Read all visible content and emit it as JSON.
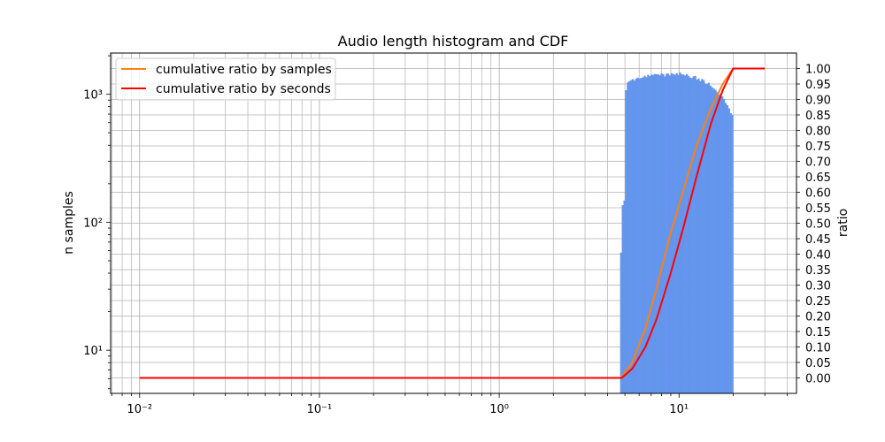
{
  "chart_data": {
    "type": "bar",
    "title": "Audio length histogram and CDF",
    "xlabel": "",
    "ylabel_left": "n samples",
    "ylabel_right": "ratio",
    "x_scale": "log",
    "y_left_scale": "log",
    "xlim": [
      0.0069,
      45
    ],
    "y_left_lim": [
      4.6,
      2100
    ],
    "y_right_lim": [
      -0.05,
      1.05
    ],
    "x_tick_labels": [
      "10⁻²",
      "10⁻¹",
      "10⁰",
      "10¹"
    ],
    "y_left_tick_labels": [
      "10¹",
      "10²",
      "10³"
    ],
    "y_right_ticks": [
      "0.00",
      "0.05",
      "0.10",
      "0.15",
      "0.20",
      "0.25",
      "0.30",
      "0.35",
      "0.40",
      "0.45",
      "0.50",
      "0.55",
      "0.60",
      "0.65",
      "0.70",
      "0.75",
      "0.80",
      "0.85",
      "0.90",
      "0.95",
      "1.00"
    ],
    "grid": true,
    "legend_position": "top-left",
    "colors": {
      "histogram": "#6495ed",
      "samples_line": "#ff7f0e",
      "seconds_line": "#ff0000",
      "grid": "#b0b0b0"
    },
    "histogram": {
      "name": "",
      "bin_start": 4.7,
      "bin_end": 20.0,
      "counts": [
        58,
        136,
        148,
        1075,
        1238,
        1268,
        1288,
        1314,
        1281,
        1329,
        1348,
        1326,
        1344,
        1355,
        1398,
        1362,
        1416,
        1385,
        1417,
        1418,
        1441,
        1435,
        1433,
        1405,
        1459,
        1434,
        1380,
        1453,
        1448,
        1404,
        1463,
        1439,
        1424,
        1463,
        1412,
        1477,
        1432,
        1423,
        1402,
        1436,
        1393,
        1349,
        1340,
        1382,
        1392,
        1301,
        1329,
        1267,
        1317,
        1291,
        1215,
        1205,
        1232,
        1168,
        1133,
        1107,
        1083,
        1038,
        993,
        1006,
        963,
        919,
        855,
        822,
        777,
        712,
        689
      ]
    },
    "series": [
      {
        "name": "cumulative ratio by samples",
        "x": [
          0.01,
          4.75,
          5.5,
          6.5,
          7.5,
          9.0,
          10.5,
          12.5,
          15.0,
          17.5,
          20.0,
          30.0
        ],
        "y": [
          0.0,
          0.0,
          0.05,
          0.16,
          0.29,
          0.47,
          0.6,
          0.75,
          0.87,
          0.95,
          1.0,
          1.0
        ]
      },
      {
        "name": "cumulative ratio by seconds",
        "x": [
          0.01,
          4.8,
          5.5,
          6.5,
          7.5,
          9.0,
          10.5,
          12.5,
          15.0,
          17.5,
          20.0,
          30.0
        ],
        "y": [
          0.0,
          0.0,
          0.03,
          0.1,
          0.19,
          0.34,
          0.48,
          0.65,
          0.82,
          0.93,
          1.0,
          1.0
        ]
      }
    ]
  }
}
